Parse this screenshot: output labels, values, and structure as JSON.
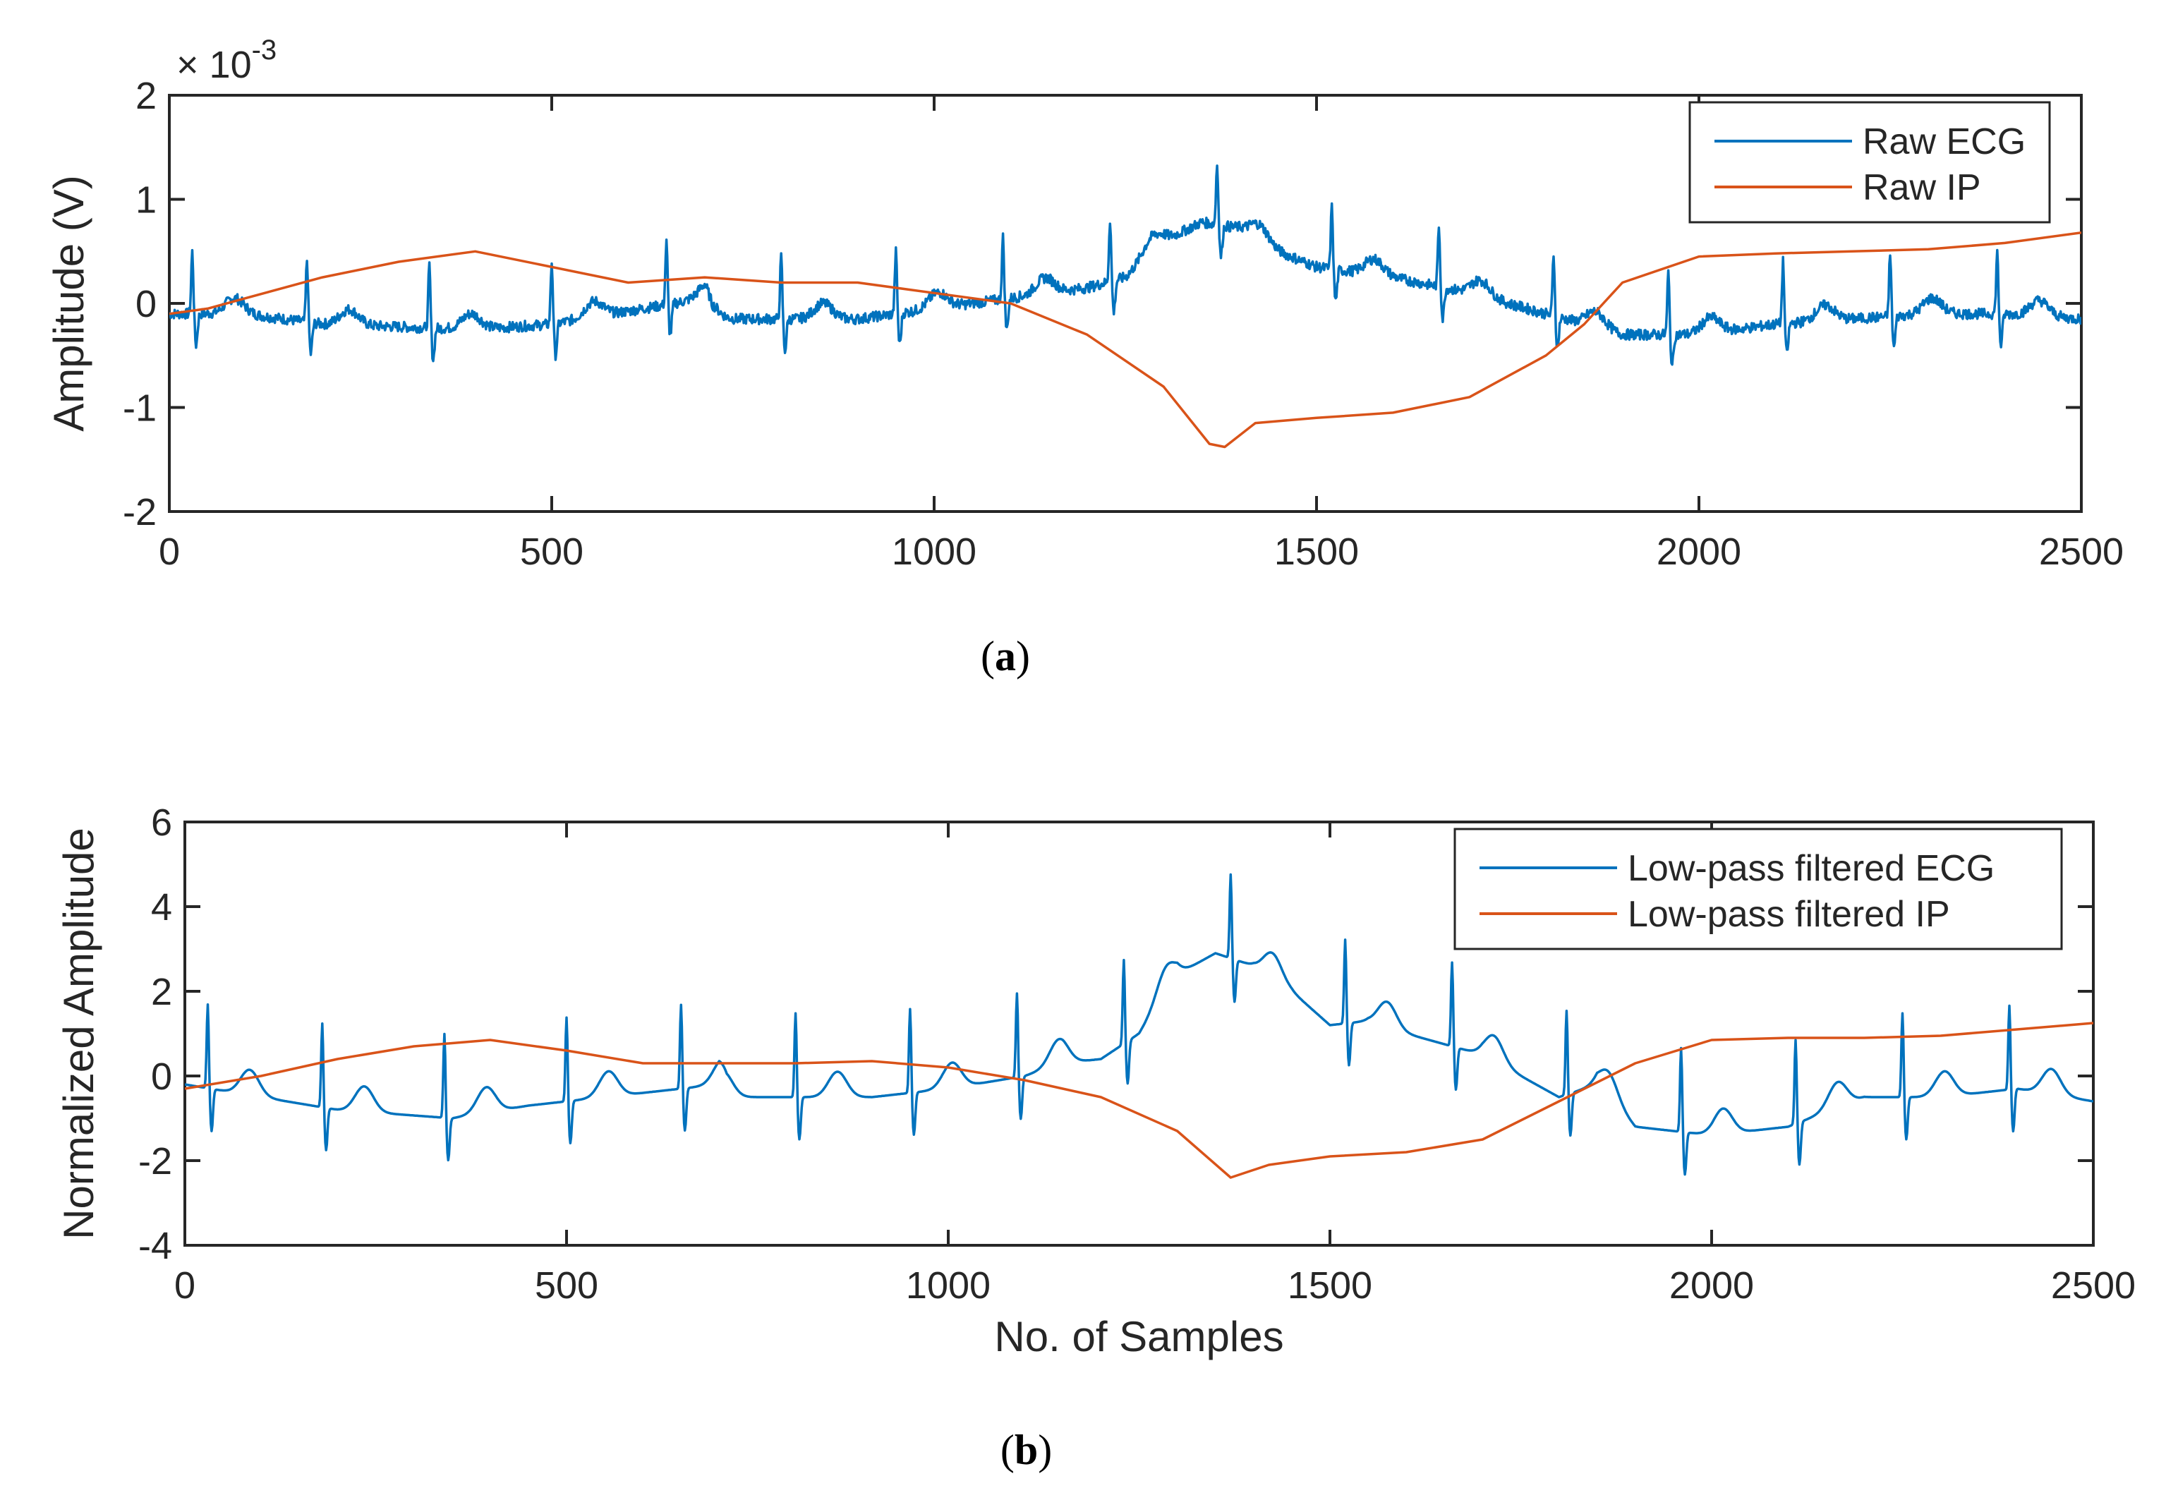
{
  "chart_data": [
    {
      "type": "line",
      "panel_caption_letter": "a",
      "xlabel": "",
      "ylabel": "Amplitude (V)",
      "y_exponent_label": "× 10",
      "y_exponent_power": "-3",
      "xlim": [
        0,
        2500
      ],
      "ylim": [
        -2,
        2
      ],
      "xticks": [
        0,
        500,
        1000,
        1500,
        2000,
        2500
      ],
      "xtick_labels": [
        "0",
        "500",
        "1000",
        "1500",
        "2000",
        "2500"
      ],
      "yticks": [
        -2,
        -1,
        0,
        1,
        2
      ],
      "ytick_labels": [
        "-2",
        "-1",
        "0",
        "1",
        "2"
      ],
      "legend_position": "top-right",
      "series": [
        {
          "name": "Raw ECG",
          "color": "#0072BD",
          "kind": "ecg",
          "r_peaks": [
            30,
            180,
            340,
            500,
            650,
            800,
            950,
            1090,
            1230,
            1370,
            1520,
            1660,
            1810,
            1960,
            2110,
            2250,
            2390
          ],
          "r_height": 0.6,
          "s_depth": -0.3,
          "t_height": 0.15,
          "noise": 0.05,
          "baseline": [
            [
              0,
              -0.1
            ],
            [
              100,
              -0.1
            ],
            [
              200,
              -0.2
            ],
            [
              400,
              -0.25
            ],
            [
              500,
              -0.2
            ],
            [
              700,
              0.05
            ],
            [
              710,
              -0.15
            ],
            [
              900,
              -0.15
            ],
            [
              1050,
              0.0
            ],
            [
              1100,
              0.05
            ],
            [
              1150,
              0.1
            ],
            [
              1200,
              0.15
            ],
            [
              1250,
              0.25
            ],
            [
              1300,
              0.6
            ],
            [
              1350,
              0.78
            ],
            [
              1400,
              0.72
            ],
            [
              1450,
              0.5
            ],
            [
              1500,
              0.35
            ],
            [
              1550,
              0.3
            ],
            [
              1600,
              0.25
            ],
            [
              1700,
              0.1
            ],
            [
              1800,
              -0.1
            ],
            [
              1850,
              -0.2
            ],
            [
              1900,
              -0.3
            ],
            [
              2000,
              -0.3
            ],
            [
              2100,
              -0.2
            ],
            [
              2200,
              -0.15
            ],
            [
              2300,
              -0.1
            ],
            [
              2400,
              -0.1
            ],
            [
              2500,
              -0.15
            ]
          ]
        },
        {
          "name": "Raw IP",
          "color": "#D95319",
          "kind": "line",
          "points": [
            [
              0,
              -0.1
            ],
            [
              50,
              -0.05
            ],
            [
              100,
              0.05
            ],
            [
              200,
              0.25
            ],
            [
              300,
              0.4
            ],
            [
              400,
              0.5
            ],
            [
              500,
              0.35
            ],
            [
              600,
              0.2
            ],
            [
              700,
              0.25
            ],
            [
              800,
              0.2
            ],
            [
              900,
              0.2
            ],
            [
              1000,
              0.1
            ],
            [
              1100,
              0.0
            ],
            [
              1200,
              -0.3
            ],
            [
              1300,
              -0.8
            ],
            [
              1360,
              -1.35
            ],
            [
              1380,
              -1.38
            ],
            [
              1420,
              -1.15
            ],
            [
              1500,
              -1.1
            ],
            [
              1600,
              -1.05
            ],
            [
              1700,
              -0.9
            ],
            [
              1800,
              -0.5
            ],
            [
              1850,
              -0.2
            ],
            [
              1900,
              0.2
            ],
            [
              2000,
              0.45
            ],
            [
              2100,
              0.48
            ],
            [
              2200,
              0.5
            ],
            [
              2300,
              0.52
            ],
            [
              2400,
              0.58
            ],
            [
              2500,
              0.68
            ]
          ]
        }
      ]
    },
    {
      "type": "line",
      "panel_caption_letter": "b",
      "xlabel": "No. of Samples",
      "ylabel": "Normalized Amplitude",
      "xlim": [
        0,
        2500
      ],
      "ylim": [
        -4,
        6
      ],
      "xticks": [
        0,
        500,
        1000,
        1500,
        2000,
        2500
      ],
      "xtick_labels": [
        "0",
        "500",
        "1000",
        "1500",
        "2000",
        "2500"
      ],
      "yticks": [
        -4,
        -2,
        0,
        2,
        4,
        6
      ],
      "ytick_labels": [
        "-4",
        "-2",
        "0",
        "2",
        "4",
        "6"
      ],
      "legend_position": "top-right",
      "series": [
        {
          "name": "Low-pass filtered ECG",
          "color": "#0072BD",
          "kind": "ecg",
          "r_peaks": [
            30,
            180,
            340,
            500,
            650,
            800,
            950,
            1090,
            1230,
            1370,
            1520,
            1660,
            1810,
            1960,
            2110,
            2250,
            2390
          ],
          "r_height": 2.0,
          "s_depth": -1.0,
          "t_height": 0.6,
          "noise": 0.0,
          "baseline": [
            [
              0,
              -0.2
            ],
            [
              100,
              -0.5
            ],
            [
              200,
              -0.8
            ],
            [
              350,
              -1.0
            ],
            [
              450,
              -0.7
            ],
            [
              500,
              -0.6
            ],
            [
              700,
              -0.2
            ],
            [
              710,
              -0.5
            ],
            [
              900,
              -0.5
            ],
            [
              1000,
              -0.3
            ],
            [
              1100,
              0.0
            ],
            [
              1150,
              0.3
            ],
            [
              1200,
              0.4
            ],
            [
              1250,
              1.0
            ],
            [
              1300,
              2.4
            ],
            [
              1350,
              2.9
            ],
            [
              1400,
              2.6
            ],
            [
              1450,
              2.0
            ],
            [
              1500,
              1.2
            ],
            [
              1550,
              1.3
            ],
            [
              1600,
              1.0
            ],
            [
              1700,
              0.5
            ],
            [
              1800,
              -0.5
            ],
            [
              1850,
              -0.2
            ],
            [
              1900,
              -1.2
            ],
            [
              2000,
              -1.4
            ],
            [
              2100,
              -1.2
            ],
            [
              2200,
              -0.5
            ],
            [
              2300,
              -0.5
            ],
            [
              2400,
              -0.3
            ],
            [
              2500,
              -0.6
            ]
          ]
        },
        {
          "name": "Low-pass filtered IP",
          "color": "#D95319",
          "kind": "line",
          "points": [
            [
              0,
              -0.3
            ],
            [
              100,
              0.0
            ],
            [
              200,
              0.4
            ],
            [
              300,
              0.7
            ],
            [
              400,
              0.85
            ],
            [
              500,
              0.6
            ],
            [
              600,
              0.3
            ],
            [
              700,
              0.3
            ],
            [
              800,
              0.3
            ],
            [
              900,
              0.35
            ],
            [
              1000,
              0.2
            ],
            [
              1100,
              -0.1
            ],
            [
              1200,
              -0.5
            ],
            [
              1300,
              -1.3
            ],
            [
              1370,
              -2.4
            ],
            [
              1420,
              -2.1
            ],
            [
              1500,
              -1.9
            ],
            [
              1600,
              -1.8
            ],
            [
              1700,
              -1.5
            ],
            [
              1800,
              -0.6
            ],
            [
              1900,
              0.3
            ],
            [
              2000,
              0.85
            ],
            [
              2100,
              0.9
            ],
            [
              2200,
              0.9
            ],
            [
              2300,
              0.95
            ],
            [
              2400,
              1.1
            ],
            [
              2500,
              1.25
            ]
          ]
        }
      ]
    }
  ]
}
